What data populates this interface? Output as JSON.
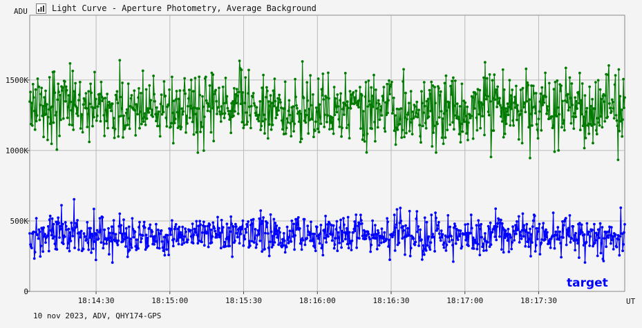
{
  "header": {
    "title": "Light Curve - Aperture Photometry, Average Background",
    "icon": "chart-window-icon"
  },
  "footer": {
    "text": "10 nov 2023, ADV, QHY174-GPS"
  },
  "chart_data": {
    "type": "line",
    "title": "Light Curve - Aperture Photometry, Average Background",
    "xlabel": "UT",
    "ylabel": "ADU",
    "x_range": [
      "18:14:03",
      "18:18:05"
    ],
    "ylim": [
      0,
      1960000
    ],
    "grid": true,
    "x_ticks": [
      "18:14:30",
      "18:15:00",
      "18:15:30",
      "18:16:00",
      "18:16:30",
      "18:17:00",
      "18:17:30"
    ],
    "y_ticks": [
      {
        "value": 0,
        "label": "0"
      },
      {
        "value": 500000,
        "label": "500K"
      },
      {
        "value": 1000000,
        "label": "1000K"
      },
      {
        "value": 1500000,
        "label": "1500K"
      }
    ],
    "series": [
      {
        "color": "#007a00",
        "mean": 1300000,
        "spread": 150000,
        "min": 780000,
        "max": 1840000,
        "points": 900
      },
      {
        "color": "#0000ff",
        "mean": 400000,
        "spread": 90000,
        "min": 120000,
        "max": 730000,
        "points": 900
      }
    ],
    "annotations": [
      {
        "text": "target",
        "color": "#0000ff"
      }
    ]
  }
}
